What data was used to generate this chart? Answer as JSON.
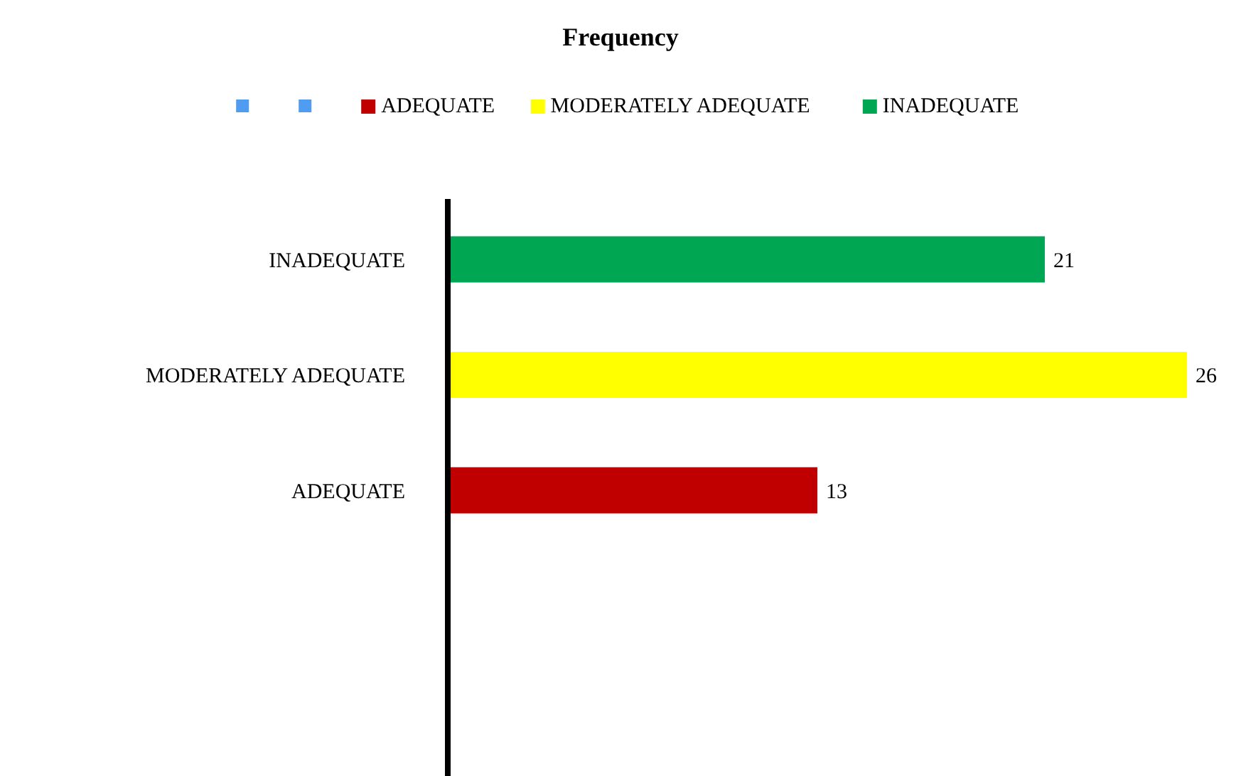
{
  "chart_data": {
    "type": "bar",
    "orientation": "horizontal",
    "title": "Frequency",
    "stacked": true,
    "categories": [
      "INADEQUATE",
      "MODERATELY ADEQUATE",
      "ADEQUATE",
      null,
      null
    ],
    "series": [
      {
        "name": "ADEQUATE",
        "color": "#c00000",
        "values": [
          null,
          null,
          13,
          null,
          null
        ]
      },
      {
        "name": "MODERATELY ADEQUATE",
        "color": "#ffff00",
        "values": [
          null,
          26,
          null,
          null,
          null
        ]
      },
      {
        "name": "INADEQUATE",
        "color": "#00a651",
        "values": [
          21,
          null,
          null,
          null,
          null
        ]
      }
    ],
    "data_labels": true,
    "legend": "top"
  }
}
